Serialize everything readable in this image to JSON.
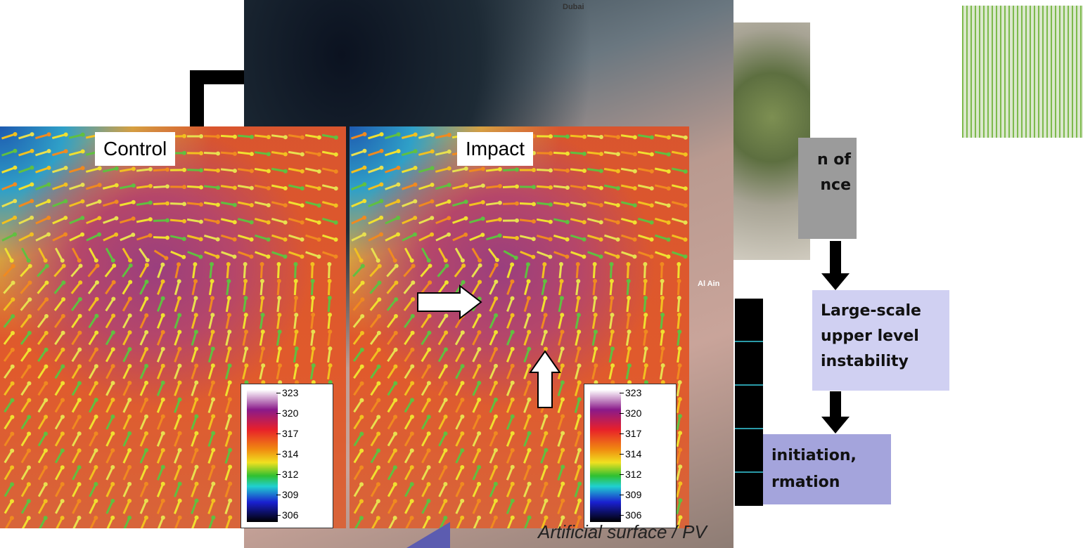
{
  "map_labels": [
    "Dubai",
    "Al Ain"
  ],
  "panels": [
    {
      "label": "Control"
    },
    {
      "label": "Impact"
    }
  ],
  "colorbar_ticks": [
    323,
    320,
    317,
    314,
    312,
    309,
    306
  ],
  "flow": {
    "box1": [
      "n of",
      "nce"
    ],
    "box2": [
      "Large-scale",
      "upper level",
      "instability"
    ],
    "box3": [
      "initiation,",
      "rmation"
    ]
  },
  "caption": "Artificial surface / PV"
}
